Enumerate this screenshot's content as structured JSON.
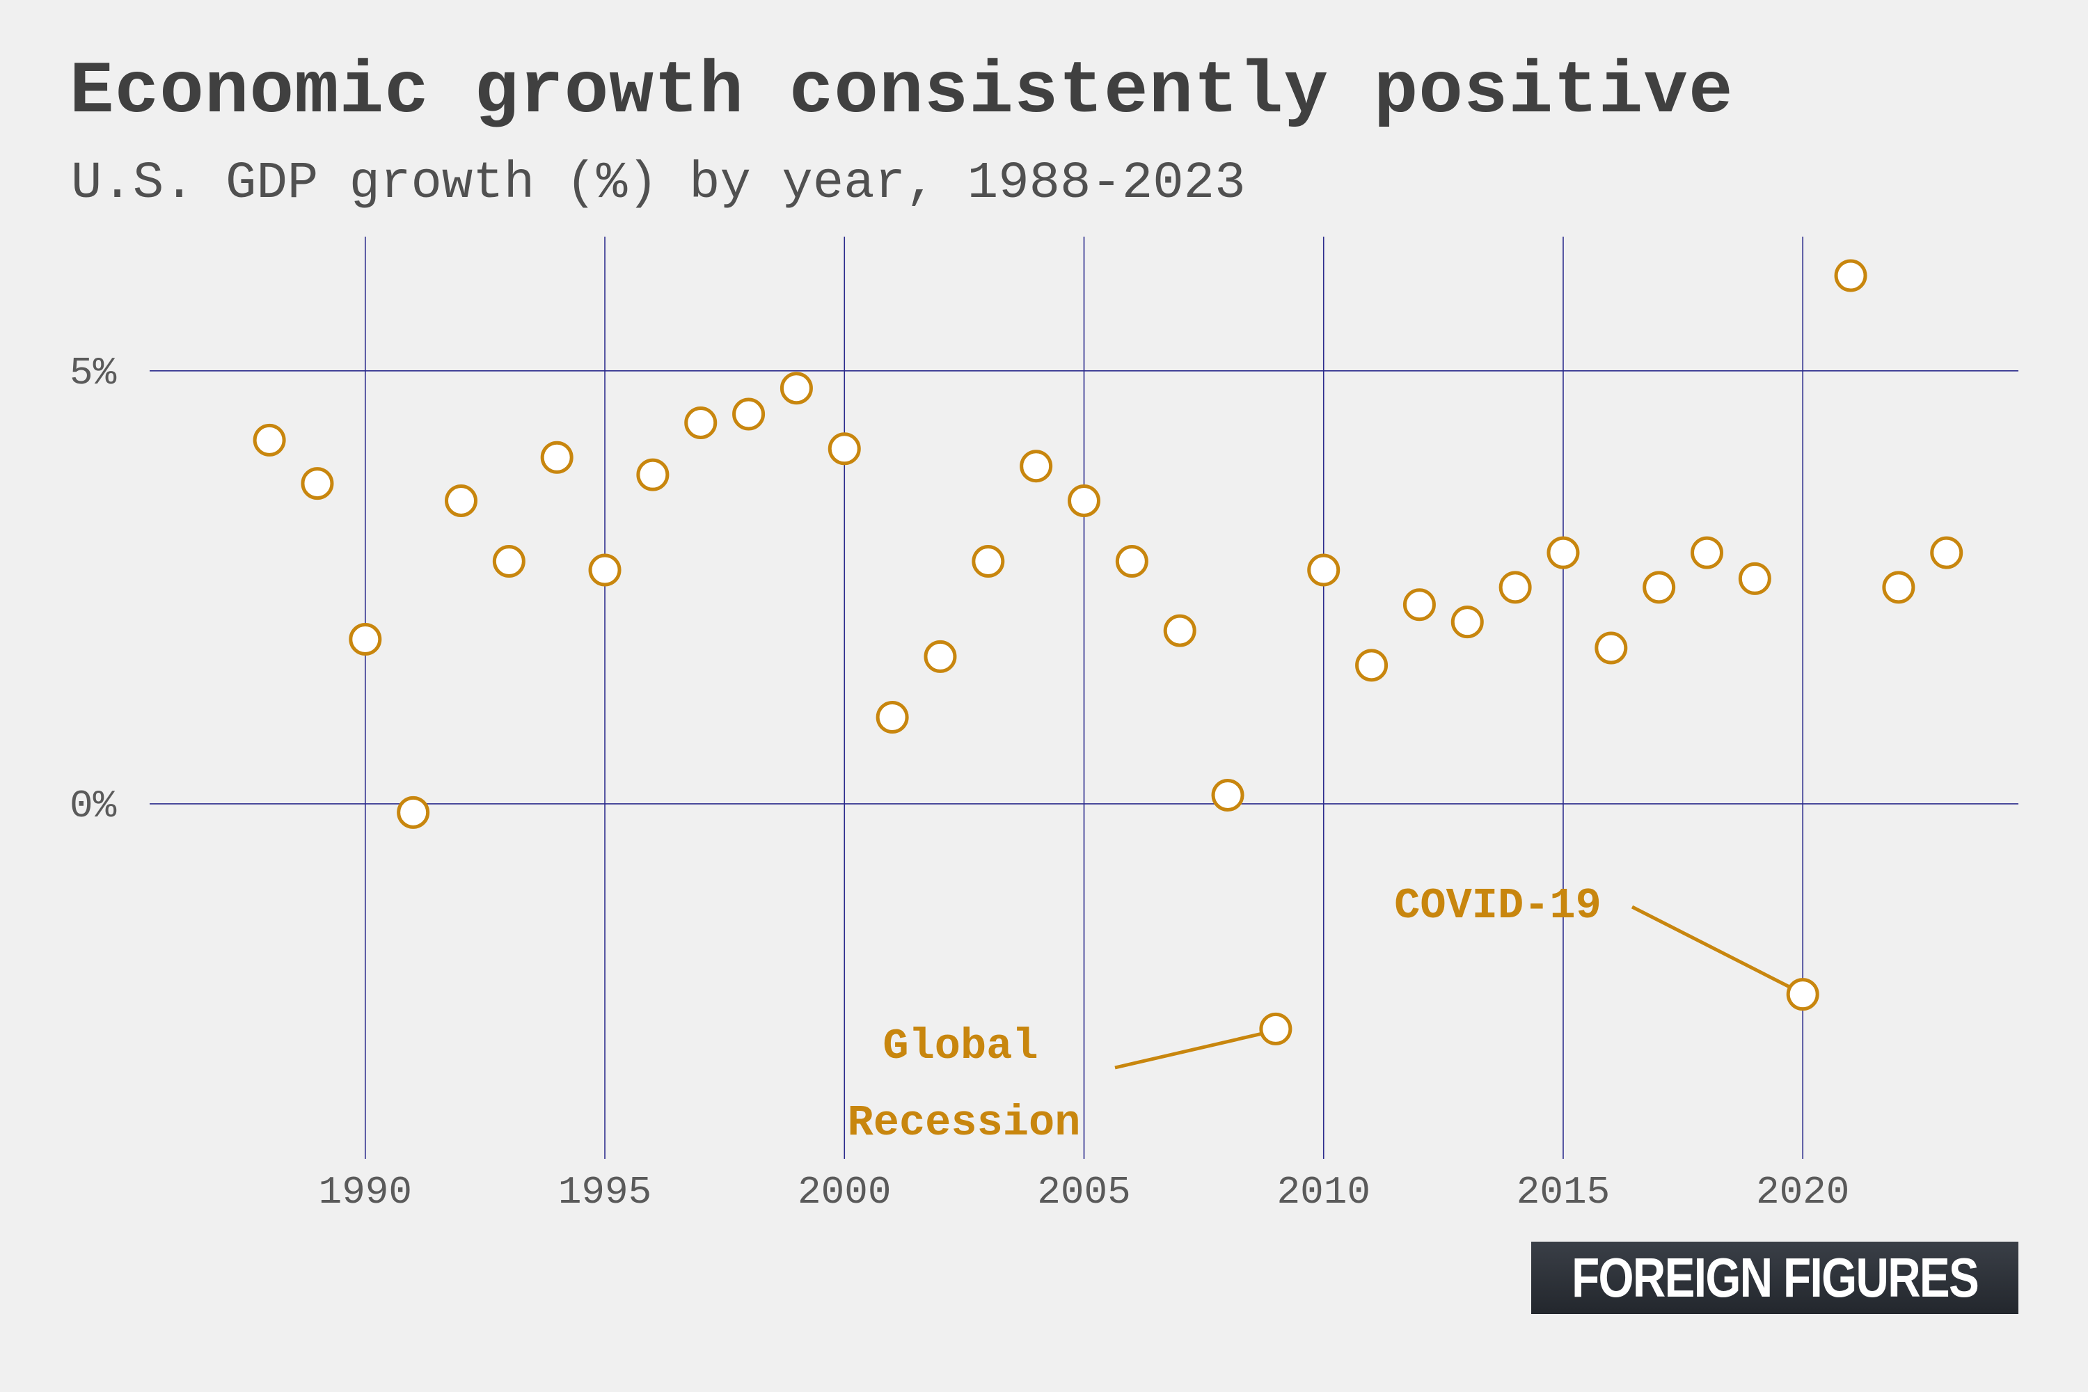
{
  "colors": {
    "background": "#f0f0f0",
    "grid": "#2b2b8c",
    "marker_stroke": "#c8860e",
    "marker_fill": "#ffffff",
    "annotation": "#c8860e"
  },
  "chart_data": {
    "type": "scatter",
    "title": "Economic growth consistently positive",
    "subtitle": "U.S. GDP growth (%) by year, 1988-2023",
    "xlabel": "",
    "ylabel": "",
    "x_ticks": [
      1990,
      1995,
      2000,
      2005,
      2010,
      2015,
      2020
    ],
    "y_ticks": [
      0,
      5
    ],
    "y_tick_labels": [
      "0%",
      "5%"
    ],
    "xlim": [
      1985.5,
      2024.5
    ],
    "ylim": [
      -4.1,
      6.55
    ],
    "grid": true,
    "legend": "none",
    "series": [
      {
        "x": [
          1988,
          1989,
          1990,
          1991,
          1992,
          1993,
          1994,
          1995,
          1996,
          1997,
          1998,
          1999,
          2000,
          2001,
          2002,
          2003,
          2004,
          2005,
          2006,
          2007,
          2008,
          2009,
          2010,
          2011,
          2012,
          2013,
          2014,
          2015,
          2016,
          2017,
          2018,
          2019,
          2020,
          2021,
          2022,
          2023
        ],
        "y": [
          4.2,
          3.7,
          1.9,
          -0.1,
          3.5,
          2.8,
          4.0,
          2.7,
          3.8,
          4.4,
          4.5,
          4.8,
          4.1,
          1.0,
          1.7,
          2.8,
          3.9,
          3.5,
          2.8,
          2.0,
          0.1,
          -2.6,
          2.7,
          1.6,
          2.3,
          2.1,
          2.5,
          2.9,
          1.8,
          2.5,
          2.9,
          2.6,
          -2.2,
          6.1,
          2.5,
          2.9
        ]
      }
    ],
    "annotations": [
      {
        "text_lines": [
          "Global",
          "Recession"
        ],
        "x": 2009,
        "y": -2.6
      },
      {
        "text_lines": [
          "COVID-19"
        ],
        "x": 2020,
        "y": -2.2
      }
    ]
  },
  "logo": {
    "text": "FOREIGN FIGURES"
  }
}
